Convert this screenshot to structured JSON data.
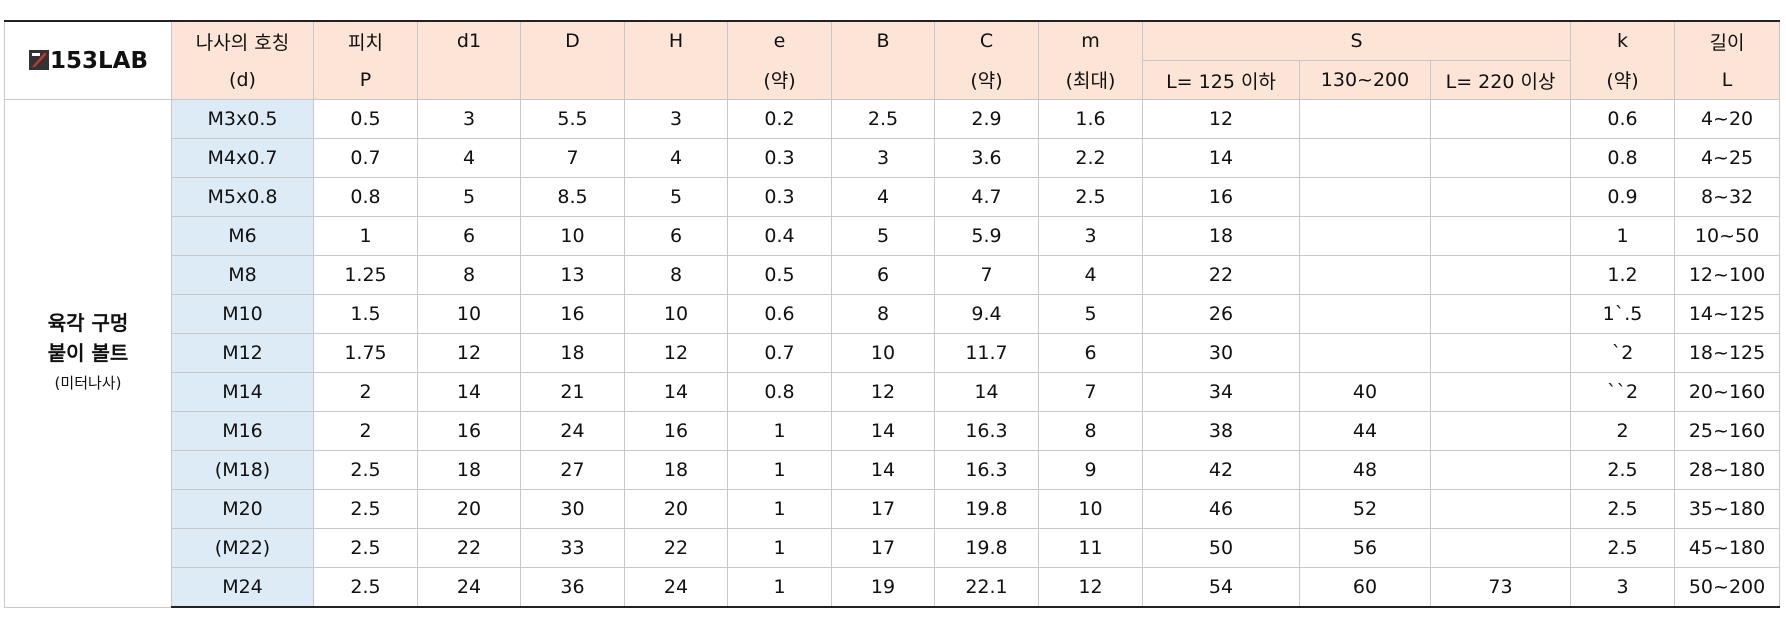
{
  "logo": "153LAB",
  "category": {
    "lines": [
      "육각 구멍",
      "붙이 볼트"
    ],
    "note": "(미터나사)"
  },
  "table": {
    "header_top": [
      "나사의 호칭",
      "피치",
      "d1",
      "D",
      "H",
      "e",
      "B",
      "C",
      "m",
      "S",
      "k",
      "길이"
    ],
    "header_bottom": [
      "(d)",
      "P",
      null,
      null,
      null,
      "(약)",
      null,
      "(약)",
      "(최대)",
      "L= 125 이하",
      "130~200",
      "L= 220 이상",
      "(약)",
      "L"
    ],
    "rows": [
      [
        "M3x0.5",
        "0.5",
        "3",
        "5.5",
        "3",
        "0.2",
        "2.5",
        "2.9",
        "1.6",
        "12",
        null,
        null,
        "0.6",
        "4~20"
      ],
      [
        "M4x0.7",
        "0.7",
        "4",
        "7",
        "4",
        "0.3",
        "3",
        "3.6",
        "2.2",
        "14",
        null,
        null,
        "0.8",
        "4~25"
      ],
      [
        "M5x0.8",
        "0.8",
        "5",
        "8.5",
        "5",
        "0.3",
        "4",
        "4.7",
        "2.5",
        "16",
        null,
        null,
        "0.9",
        "8~32"
      ],
      [
        "M6",
        "1",
        "6",
        "10",
        "6",
        "0.4",
        "5",
        "5.9",
        "3",
        "18",
        null,
        null,
        "1",
        "10~50"
      ],
      [
        "M8",
        "1.25",
        "8",
        "13",
        "8",
        "0.5",
        "6",
        "7",
        "4",
        "22",
        null,
        null,
        "1.2",
        "12~100"
      ],
      [
        "M10",
        "1.5",
        "10",
        "16",
        "10",
        "0.6",
        "8",
        "9.4",
        "5",
        "26",
        null,
        null,
        "1`.5",
        "14~125"
      ],
      [
        "M12",
        "1.75",
        "12",
        "18",
        "12",
        "0.7",
        "10",
        "11.7",
        "6",
        "30",
        null,
        null,
        "`2",
        "18~125"
      ],
      [
        "M14",
        "2",
        "14",
        "21",
        "14",
        "0.8",
        "12",
        "14",
        "7",
        "34",
        "40",
        null,
        "``2",
        "20~160"
      ],
      [
        "M16",
        "2",
        "16",
        "24",
        "16",
        "1",
        "14",
        "16.3",
        "8",
        "38",
        "44",
        null,
        "2",
        "25~160"
      ],
      [
        "(M18)",
        "2.5",
        "18",
        "27",
        "18",
        "1",
        "14",
        "16.3",
        "9",
        "42",
        "48",
        null,
        "2.5",
        "28~180"
      ],
      [
        "M20",
        "2.5",
        "20",
        "30",
        "20",
        "1",
        "17",
        "19.8",
        "10",
        "46",
        "52",
        null,
        "2.5",
        "35~180"
      ],
      [
        "(M22)",
        "2.5",
        "22",
        "33",
        "22",
        "1",
        "17",
        "19.8",
        "11",
        "50",
        "56",
        null,
        "2.5",
        "45~180"
      ],
      [
        "M24",
        "2.5",
        "24",
        "36",
        "24",
        "1",
        "19",
        "22.1",
        "12",
        "54",
        "60",
        "73",
        "3",
        "50~200"
      ]
    ]
  }
}
